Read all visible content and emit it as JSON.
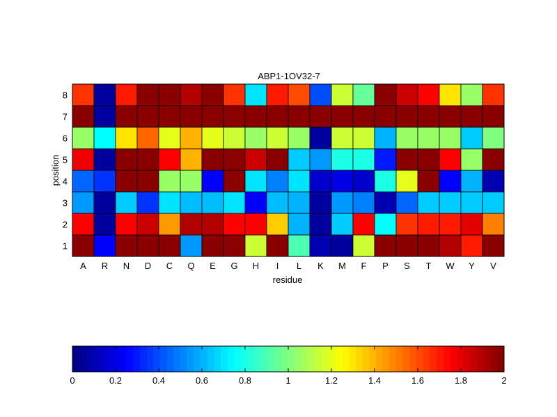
{
  "chart_data": [
    {
      "type": "heatmap",
      "title": "ABP1-1OV32-7",
      "xlabel": "residue",
      "ylabel": "position",
      "x_categories": [
        "A",
        "R",
        "N",
        "D",
        "C",
        "Q",
        "E",
        "G",
        "H",
        "I",
        "L",
        "K",
        "M",
        "F",
        "P",
        "S",
        "T",
        "W",
        "Y",
        "V"
      ],
      "y_categories": [
        "1",
        "2",
        "3",
        "4",
        "5",
        "6",
        "7",
        "8"
      ],
      "value_range": [
        0,
        2
      ],
      "colormap": "jet",
      "values": [
        [
          1.98,
          0.25,
          1.98,
          1.98,
          1.98,
          0.55,
          1.98,
          1.98,
          1.15,
          1.98,
          0.9,
          0.1,
          0.06,
          1.15,
          1.98,
          1.98,
          1.98,
          1.9,
          1.7,
          1.98
        ],
        [
          1.75,
          0.06,
          1.75,
          1.85,
          1.45,
          1.9,
          1.9,
          1.75,
          1.75,
          1.35,
          0.6,
          0.06,
          0.65,
          1.75,
          0.75,
          1.65,
          1.7,
          1.7,
          1.8,
          1.5
        ],
        [
          0.55,
          0.06,
          0.65,
          0.35,
          0.7,
          0.62,
          0.62,
          0.7,
          0.25,
          0.62,
          0.6,
          0.06,
          0.55,
          0.5,
          0.1,
          0.45,
          0.65,
          0.65,
          0.65,
          0.65
        ],
        [
          0.45,
          0.35,
          1.98,
          1.98,
          1.05,
          1.05,
          0.25,
          1.98,
          0.7,
          0.5,
          0.7,
          0.15,
          0.2,
          0.15,
          0.8,
          1.2,
          1.98,
          0.25,
          0.6,
          0.1
        ],
        [
          1.78,
          0.06,
          1.98,
          1.98,
          1.75,
          1.4,
          1.98,
          1.98,
          1.85,
          1.98,
          0.65,
          0.55,
          0.8,
          0.8,
          0.3,
          1.98,
          1.98,
          1.75,
          1.05,
          1.98
        ],
        [
          1.05,
          0.75,
          1.3,
          1.55,
          1.2,
          1.4,
          1.2,
          1.15,
          1.05,
          1.15,
          1.05,
          0.06,
          1.15,
          1.15,
          0.6,
          1.05,
          1.05,
          1.05,
          0.65,
          1.0
        ],
        [
          1.98,
          0.06,
          1.98,
          1.98,
          1.98,
          1.98,
          1.98,
          1.98,
          1.98,
          1.98,
          1.98,
          1.98,
          1.98,
          1.98,
          1.98,
          1.98,
          1.98,
          1.98,
          1.98,
          1.98
        ],
        [
          1.65,
          0.06,
          1.7,
          1.98,
          1.98,
          1.9,
          1.98,
          1.65,
          0.7,
          1.7,
          1.6,
          0.4,
          1.15,
          0.95,
          1.98,
          1.85,
          1.75,
          1.3,
          1.05,
          1.65
        ]
      ],
      "colorbar": {
        "ticks": [
          "0",
          "0.2",
          "0.4",
          "0.6",
          "0.8",
          "1",
          "1.2",
          "1.4",
          "1.6",
          "1.8",
          "2"
        ],
        "tick_values": [
          0,
          0.2,
          0.4,
          0.6,
          0.8,
          1.0,
          1.2,
          1.4,
          1.6,
          1.8,
          2.0
        ],
        "orientation": "horizontal",
        "placement": "bottom"
      }
    }
  ]
}
